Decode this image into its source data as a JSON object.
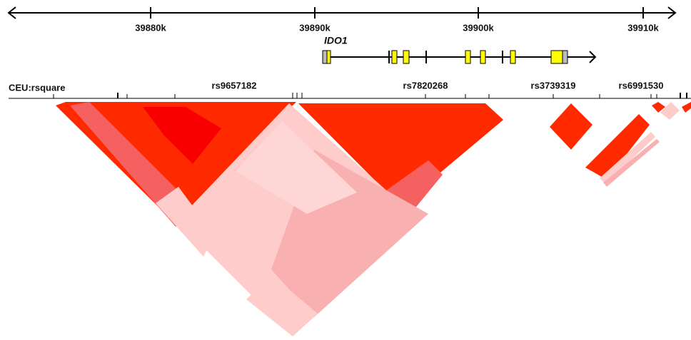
{
  "axis": {
    "ticks": [
      "39880k",
      "39890k",
      "39900k",
      "39910k"
    ]
  },
  "gene": {
    "name": "IDO1"
  },
  "track": {
    "label": "CEU:rsquare",
    "snps": [
      "rs9657182",
      "rs7820268",
      "rs3739319",
      "rs6991530"
    ]
  }
}
